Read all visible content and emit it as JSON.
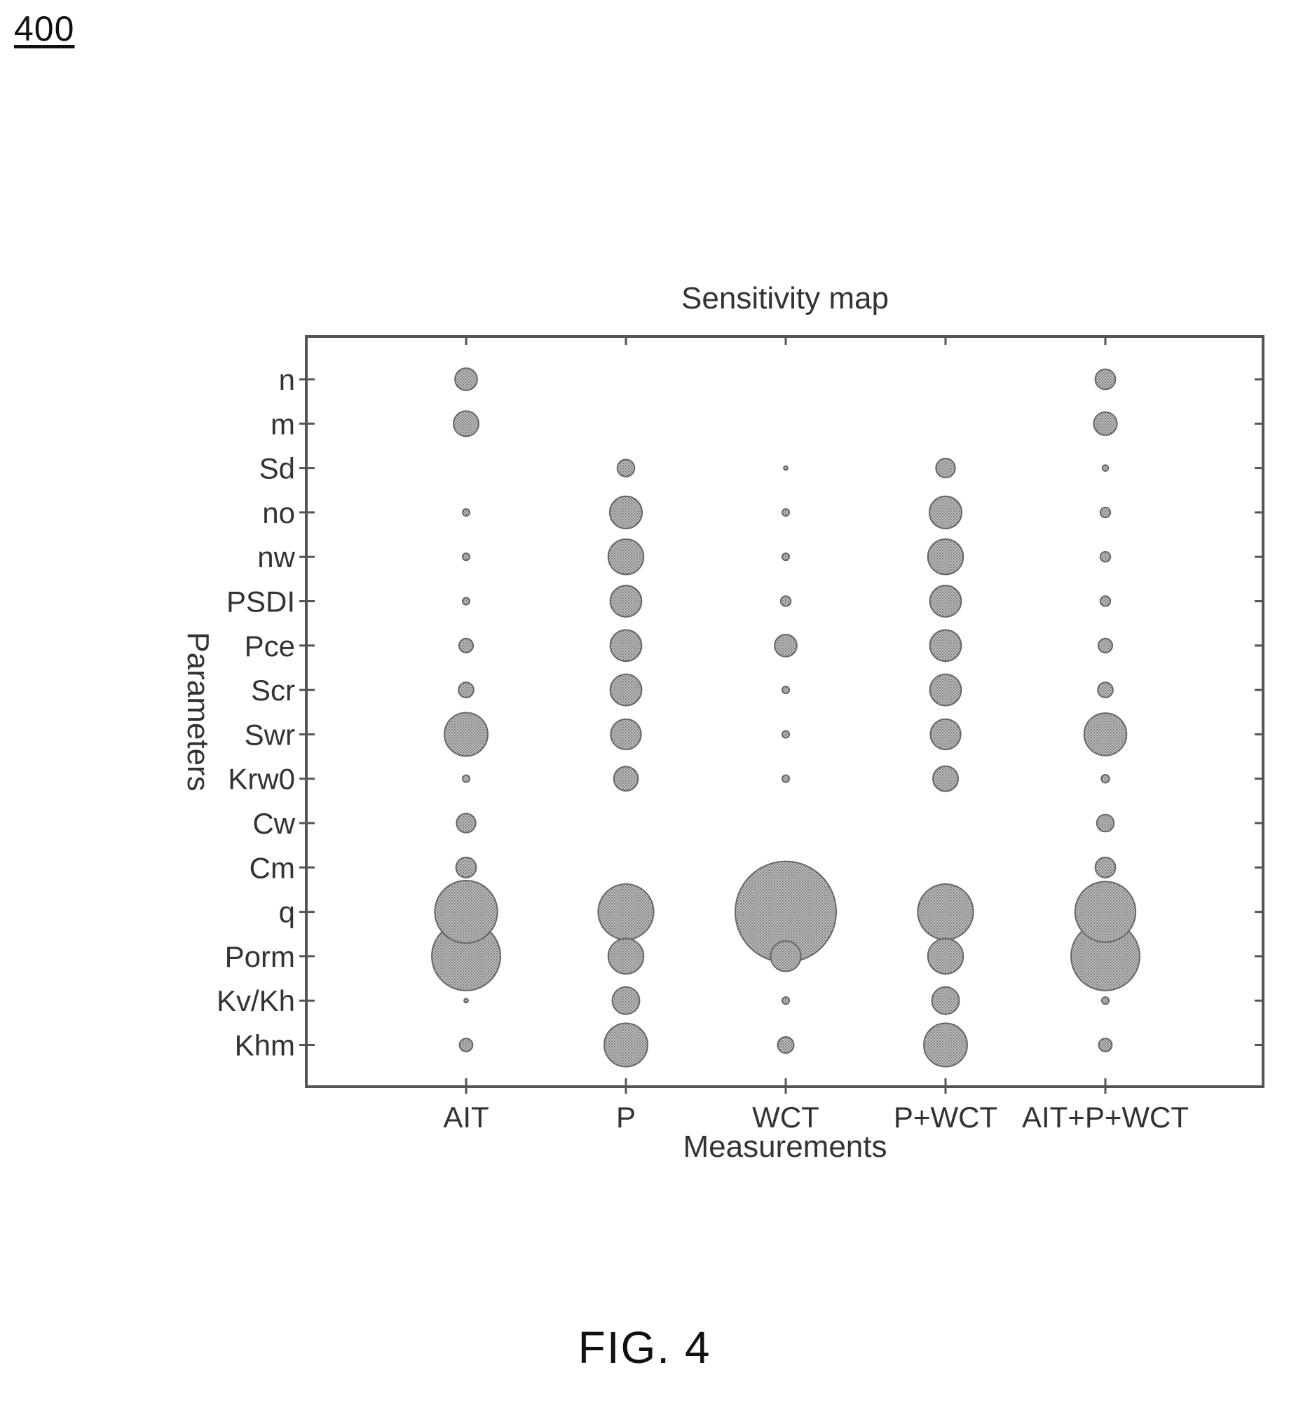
{
  "figure_number": "400",
  "caption": "FIG. 4",
  "colors": {
    "bubble_fill": "#a8a8a8",
    "bubble_stroke": "#666666",
    "frame": "#555555"
  },
  "chart_data": {
    "type": "scatter",
    "title": "Sensitivity map",
    "xlabel": "Measurements",
    "ylabel": "Parameters",
    "x_categories": [
      "AIT",
      "P",
      "WCT",
      "P+WCT",
      "AIT+P+WCT"
    ],
    "y_categories": [
      "n",
      "m",
      "Sd",
      "no",
      "nw",
      "PSDI",
      "Pce",
      "Scr",
      "Swr",
      "Krw0",
      "Cw",
      "Cm",
      "q",
      "Porm",
      "Kv/Kh",
      "Khm"
    ],
    "grid": false,
    "legend": "none",
    "size_scale": "relative bubble radius (largest = 1.0)",
    "points": [
      {
        "x": "AIT",
        "y": "n",
        "size": 0.22
      },
      {
        "x": "AIT",
        "y": "m",
        "size": 0.25
      },
      {
        "x": "AIT",
        "y": "no",
        "size": 0.07
      },
      {
        "x": "AIT",
        "y": "nw",
        "size": 0.07
      },
      {
        "x": "AIT",
        "y": "PSDI",
        "size": 0.07
      },
      {
        "x": "AIT",
        "y": "Pce",
        "size": 0.14
      },
      {
        "x": "AIT",
        "y": "Scr",
        "size": 0.15
      },
      {
        "x": "AIT",
        "y": "Swr",
        "size": 0.43
      },
      {
        "x": "AIT",
        "y": "Krw0",
        "size": 0.07
      },
      {
        "x": "AIT",
        "y": "Cw",
        "size": 0.19
      },
      {
        "x": "AIT",
        "y": "Cm",
        "size": 0.2
      },
      {
        "x": "AIT",
        "y": "q",
        "size": 0.62
      },
      {
        "x": "AIT",
        "y": "Porm",
        "size": 0.68
      },
      {
        "x": "AIT",
        "y": "Kv/Kh",
        "size": 0.04
      },
      {
        "x": "AIT",
        "y": "Khm",
        "size": 0.13
      },
      {
        "x": "P",
        "y": "Sd",
        "size": 0.17
      },
      {
        "x": "P",
        "y": "no",
        "size": 0.32
      },
      {
        "x": "P",
        "y": "nw",
        "size": 0.35
      },
      {
        "x": "P",
        "y": "PSDI",
        "size": 0.31
      },
      {
        "x": "P",
        "y": "Pce",
        "size": 0.31
      },
      {
        "x": "P",
        "y": "Scr",
        "size": 0.31
      },
      {
        "x": "P",
        "y": "Swr",
        "size": 0.3
      },
      {
        "x": "P",
        "y": "Krw0",
        "size": 0.24
      },
      {
        "x": "P",
        "y": "q",
        "size": 0.55
      },
      {
        "x": "P",
        "y": "Porm",
        "size": 0.35
      },
      {
        "x": "P",
        "y": "Kv/Kh",
        "size": 0.27
      },
      {
        "x": "P",
        "y": "Khm",
        "size": 0.43
      },
      {
        "x": "WCT",
        "y": "Sd",
        "size": 0.04
      },
      {
        "x": "WCT",
        "y": "no",
        "size": 0.07
      },
      {
        "x": "WCT",
        "y": "nw",
        "size": 0.07
      },
      {
        "x": "WCT",
        "y": "PSDI",
        "size": 0.1
      },
      {
        "x": "WCT",
        "y": "Pce",
        "size": 0.22
      },
      {
        "x": "WCT",
        "y": "Scr",
        "size": 0.07
      },
      {
        "x": "WCT",
        "y": "Swr",
        "size": 0.07
      },
      {
        "x": "WCT",
        "y": "Krw0",
        "size": 0.07
      },
      {
        "x": "WCT",
        "y": "q",
        "size": 1.0
      },
      {
        "x": "WCT",
        "y": "Porm",
        "size": 0.3
      },
      {
        "x": "WCT",
        "y": "Kv/Kh",
        "size": 0.07
      },
      {
        "x": "WCT",
        "y": "Khm",
        "size": 0.16
      },
      {
        "x": "P+WCT",
        "y": "Sd",
        "size": 0.19
      },
      {
        "x": "P+WCT",
        "y": "no",
        "size": 0.32
      },
      {
        "x": "P+WCT",
        "y": "nw",
        "size": 0.35
      },
      {
        "x": "P+WCT",
        "y": "PSDI",
        "size": 0.31
      },
      {
        "x": "P+WCT",
        "y": "Pce",
        "size": 0.31
      },
      {
        "x": "P+WCT",
        "y": "Scr",
        "size": 0.31
      },
      {
        "x": "P+WCT",
        "y": "Swr",
        "size": 0.3
      },
      {
        "x": "P+WCT",
        "y": "Krw0",
        "size": 0.25
      },
      {
        "x": "P+WCT",
        "y": "q",
        "size": 0.55
      },
      {
        "x": "P+WCT",
        "y": "Porm",
        "size": 0.35
      },
      {
        "x": "P+WCT",
        "y": "Kv/Kh",
        "size": 0.27
      },
      {
        "x": "P+WCT",
        "y": "Khm",
        "size": 0.43
      },
      {
        "x": "AIT+P+WCT",
        "y": "n",
        "size": 0.2
      },
      {
        "x": "AIT+P+WCT",
        "y": "m",
        "size": 0.23
      },
      {
        "x": "AIT+P+WCT",
        "y": "Sd",
        "size": 0.06
      },
      {
        "x": "AIT+P+WCT",
        "y": "no",
        "size": 0.1
      },
      {
        "x": "AIT+P+WCT",
        "y": "nw",
        "size": 0.1
      },
      {
        "x": "AIT+P+WCT",
        "y": "PSDI",
        "size": 0.1
      },
      {
        "x": "AIT+P+WCT",
        "y": "Pce",
        "size": 0.14
      },
      {
        "x": "AIT+P+WCT",
        "y": "Scr",
        "size": 0.15
      },
      {
        "x": "AIT+P+WCT",
        "y": "Swr",
        "size": 0.42
      },
      {
        "x": "AIT+P+WCT",
        "y": "Krw0",
        "size": 0.08
      },
      {
        "x": "AIT+P+WCT",
        "y": "Cw",
        "size": 0.17
      },
      {
        "x": "AIT+P+WCT",
        "y": "Cm",
        "size": 0.2
      },
      {
        "x": "AIT+P+WCT",
        "y": "q",
        "size": 0.6
      },
      {
        "x": "AIT+P+WCT",
        "y": "Porm",
        "size": 0.68
      },
      {
        "x": "AIT+P+WCT",
        "y": "Kv/Kh",
        "size": 0.07
      },
      {
        "x": "AIT+P+WCT",
        "y": "Khm",
        "size": 0.13
      }
    ]
  }
}
